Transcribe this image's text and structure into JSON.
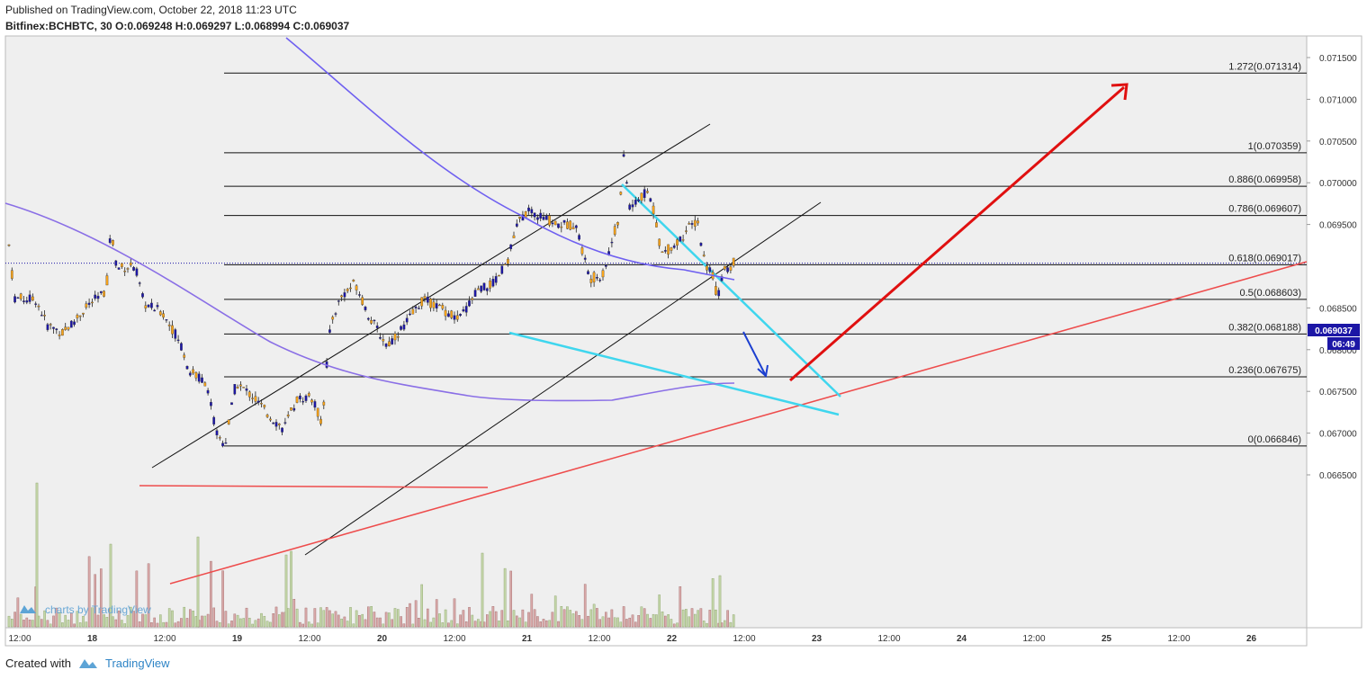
{
  "header": {
    "published": "Published on TradingView.com, October 22, 2018 11:23 UTC",
    "symbol_line": "Bitfinex:BCHBTC, 30  O:0.069248 H:0.069297 L:0.068994 C:0.069037"
  },
  "footer": {
    "created_with": "Created with",
    "brand": "TradingView",
    "watermark": "charts by TradingView"
  },
  "colors": {
    "plot_bg": "#efefef",
    "up_candle": "#f7a31a",
    "down_candle": "#1c16a6",
    "fib_line": "#111111",
    "ma_fast": "#6f60f0",
    "ma_slow": "#8a6fe6",
    "trend_red": "#ee4c4c",
    "wedge_cyan": "#3fd6ee",
    "arrow_red": "#e01010",
    "arrow_blue": "#1c3fd0",
    "last_price_bg": "#1c16a6"
  },
  "chart_data": {
    "type": "candlestick",
    "pair": "BCHBTC",
    "exchange": "Bitfinex",
    "timeframe": "30",
    "ohlc": {
      "open": 0.069248,
      "high": 0.069297,
      "low": 0.068994,
      "close": 0.069037
    },
    "last_price": "0.069037",
    "countdown": "06:49",
    "y_ticks": [
      "0.071500",
      "0.071000",
      "0.070500",
      "0.070000",
      "0.069500",
      "0.068500",
      "0.068000",
      "0.067500",
      "0.067000",
      "0.066500"
    ],
    "y_tick_values": [
      0.0715,
      0.071,
      0.0705,
      0.07,
      0.0695,
      0.0685,
      0.068,
      0.0675,
      0.067,
      0.0665
    ],
    "x_ticks": [
      "12:00",
      "18",
      "12:00",
      "19",
      "12:00",
      "20",
      "12:00",
      "21",
      "12:00",
      "22",
      "12:00",
      "23",
      "12:00",
      "24",
      "12:00",
      "25",
      "12:00",
      "26"
    ],
    "fib_levels": [
      {
        "label": "1.272(0.071314)",
        "value": 0.071314
      },
      {
        "label": "1(0.070359)",
        "value": 0.070359
      },
      {
        "label": "0.886(0.069958)",
        "value": 0.069958
      },
      {
        "label": "0.786(0.069607)",
        "value": 0.069607
      },
      {
        "label": "0.618(0.069017)",
        "value": 0.069017
      },
      {
        "label": "0.5(0.068603)",
        "value": 0.068603
      },
      {
        "label": "0.382(0.068188)",
        "value": 0.068188
      },
      {
        "label": "0.236(0.067675)",
        "value": 0.067675
      },
      {
        "label": "0(0.066846)",
        "value": 0.066846
      }
    ],
    "ylim": [
      0.06635,
      0.07168
    ],
    "grid": true
  }
}
